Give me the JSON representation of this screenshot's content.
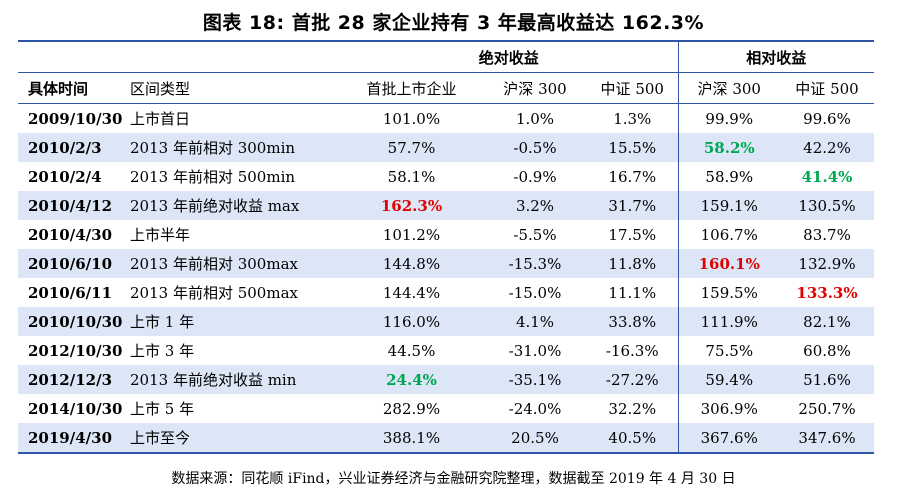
{
  "title": "图表 18: 首批 28 家企业持有 3 年最高收益达 162.3%",
  "groups": {
    "absolute": "绝对收益",
    "relative": "相对收益"
  },
  "headers": [
    "具体时间",
    "区间类型",
    "首批上市企业",
    "沪深 300",
    "中证 500",
    "沪深 300",
    "中证 500"
  ],
  "rows": [
    [
      "2009/10/30",
      "上市首日",
      "101.0%",
      "1.0%",
      "1.3%",
      "99.9%",
      "99.6%"
    ],
    [
      "2010/2/3",
      "2013 年前相对 300min",
      "57.7%",
      "-0.5%",
      "15.5%",
      "58.2%",
      "42.2%"
    ],
    [
      "2010/2/4",
      "2013 年前相对 500min",
      "58.1%",
      "-0.9%",
      "16.7%",
      "58.9%",
      "41.4%"
    ],
    [
      "2010/4/12",
      "2013 年前绝对收益 max",
      "162.3%",
      "3.2%",
      "31.7%",
      "159.1%",
      "130.5%"
    ],
    [
      "2010/4/30",
      "上市半年",
      "101.2%",
      "-5.5%",
      "17.5%",
      "106.7%",
      "83.7%"
    ],
    [
      "2010/6/10",
      "2013 年前相对 300max",
      "144.8%",
      "-15.3%",
      "11.8%",
      "160.1%",
      "132.9%"
    ],
    [
      "2010/6/11",
      "2013 年前相对 500max",
      "144.4%",
      "-15.0%",
      "11.1%",
      "159.5%",
      "133.3%"
    ],
    [
      "2010/10/30",
      "上市 1 年",
      "116.0%",
      "4.1%",
      "33.8%",
      "111.9%",
      "82.1%"
    ],
    [
      "2012/10/30",
      "上市 3 年",
      "44.5%",
      "-31.0%",
      "-16.3%",
      "75.5%",
      "60.8%"
    ],
    [
      "2012/12/3",
      "2013 年前绝对收益 min",
      "24.4%",
      "-35.1%",
      "-27.2%",
      "59.4%",
      "51.6%"
    ],
    [
      "2014/10/30",
      "上市 5 年",
      "282.9%",
      "-24.0%",
      "32.2%",
      "306.9%",
      "250.7%"
    ],
    [
      "2019/4/30",
      "上市至今",
      "388.1%",
      "20.5%",
      "40.5%",
      "367.6%",
      "347.6%"
    ]
  ],
  "highlights": {
    "red": "#e00000",
    "green": "#00a651"
  },
  "source": "数据来源：同花顺 iFind，兴业证券经济与金融研究院整理，数据截至 2019 年 4 月 30 日"
}
